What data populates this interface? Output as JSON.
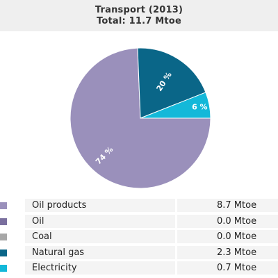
{
  "header": {
    "title": "Transport (2013)",
    "subtitle": "Total: 11.7 Mtoe"
  },
  "chart_data": {
    "type": "pie",
    "title": "Transport (2013)",
    "subtitle": "Total: 11.7 Mtoe",
    "slices": [
      {
        "label": "Oil products",
        "value": 8.7,
        "percent_label": "74 %",
        "color": "#9a90bb"
      },
      {
        "label": "Oil",
        "value": 0.0,
        "percent_label": "",
        "color": "#7a6f9e"
      },
      {
        "label": "Coal",
        "value": 0.0,
        "percent_label": "",
        "color": "#a7a7a7"
      },
      {
        "label": "Natural gas",
        "value": 2.3,
        "percent_label": "20 %",
        "color": "#0a6688"
      },
      {
        "label": "Electricity",
        "value": 0.7,
        "percent_label": "6 %",
        "color": "#13b8d9"
      }
    ],
    "start_angle": "90° (3 o'clock), clockwise for oil products",
    "legend_placement": "bottom"
  },
  "legend": {
    "items": [
      {
        "label": "Oil products",
        "value": "8.7 Mtoe",
        "color": "#9a90bb"
      },
      {
        "label": "Oil",
        "value": "0.0 Mtoe",
        "color": "#7a6f9e"
      },
      {
        "label": "Coal",
        "value": "0.0 Mtoe",
        "color": "#a7a7a7"
      },
      {
        "label": "Natural gas",
        "value": "2.3 Mtoe",
        "color": "#0a6688"
      },
      {
        "label": "Electricity",
        "value": "0.7 Mtoe",
        "color": "#13b8d9"
      }
    ]
  }
}
